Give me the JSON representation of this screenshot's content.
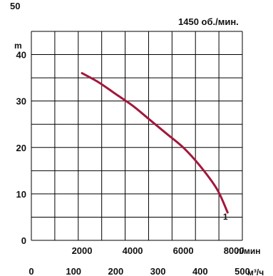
{
  "chart_data": {
    "type": "line",
    "title": "",
    "speed_label": "1450 об./мин.",
    "ylabel": "m",
    "ylim": [
      0,
      45
    ],
    "yticks": [
      0,
      10,
      20,
      30,
      40
    ],
    "y_top_partial_tick": "50",
    "x_flow_m3h": {
      "ticks": [
        0,
        100,
        200,
        300,
        400,
        500
      ],
      "unit": "м³/ч",
      "range": [
        0,
        500
      ]
    },
    "x_flow_lmin": {
      "ticks": [
        2000,
        4000,
        6000,
        8000
      ],
      "unit": "л/мин"
    },
    "grid": true,
    "series": [
      {
        "name": "1",
        "color": "#a3173b",
        "x_m3h": [
          120,
          160,
          200,
          240,
          280,
          320,
          360,
          400,
          440,
          465
        ],
        "y_m": [
          36,
          34,
          31.5,
          29,
          26,
          23,
          20,
          16,
          11,
          6
        ]
      }
    ]
  }
}
